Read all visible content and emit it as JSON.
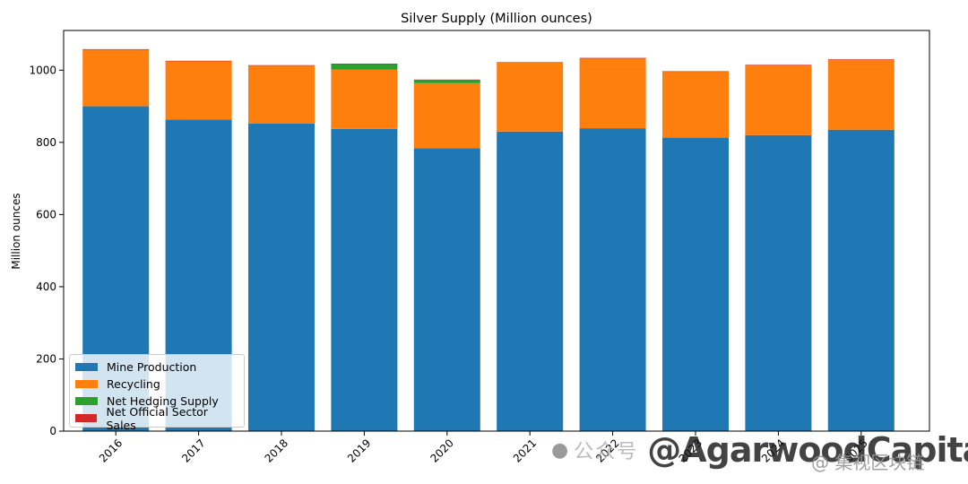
{
  "chart_data": {
    "type": "bar",
    "stacked": true,
    "title": "Silver Supply (Million ounces)",
    "xlabel": "",
    "ylabel": "Million ounces",
    "ylim": [
      0,
      1110
    ],
    "yticks": [
      0,
      200,
      400,
      600,
      800,
      1000
    ],
    "categories": [
      "2016",
      "2017",
      "2018",
      "2019",
      "2020",
      "2021",
      "2022",
      "2023",
      "2024",
      "2025"
    ],
    "series": [
      {
        "name": "Mine Production",
        "color": "#1f77b4",
        "values": [
          900,
          863,
          852,
          837,
          784,
          830,
          839,
          813,
          820,
          835
        ]
      },
      {
        "name": "Recycling",
        "color": "#ff7f0e",
        "values": [
          157,
          162,
          161,
          165,
          180,
          191,
          194,
          183,
          194,
          194
        ]
      },
      {
        "name": "Net Hedging Supply",
        "color": "#2ca02c",
        "values": [
          0,
          0,
          0,
          15,
          9,
          0,
          0,
          0,
          0,
          0
        ]
      },
      {
        "name": "Net Official Sector Sales",
        "color": "#d62728",
        "values": [
          1,
          1,
          1,
          1,
          1,
          1,
          1,
          1,
          1,
          1
        ]
      }
    ],
    "legend_position": "lower-left",
    "grid": false
  },
  "watermark": {
    "wechat": "公众号",
    "brand": "@AgarwoodCapital",
    "right": "@ 集视区块链"
  }
}
